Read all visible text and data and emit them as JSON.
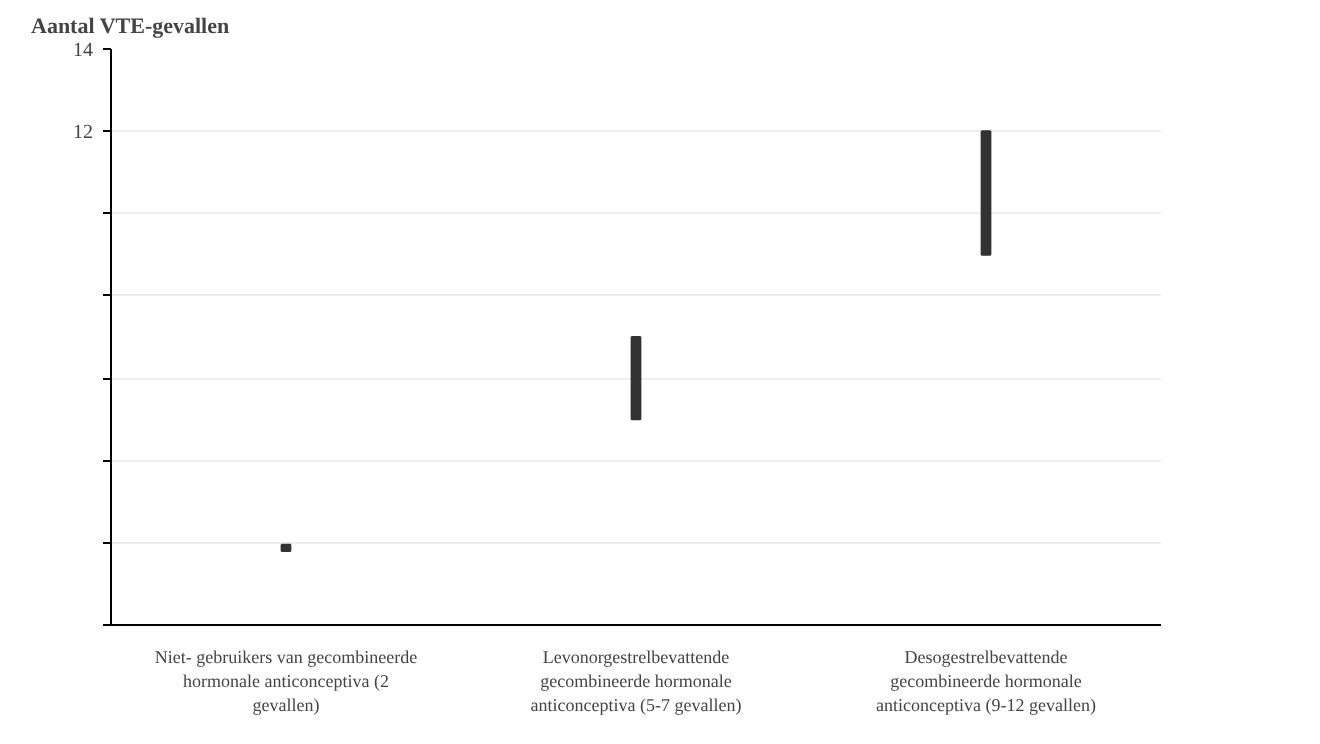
{
  "chart_data": {
    "type": "bar",
    "title": "Aantal VTE-gevallen",
    "categories": [
      "Niet- gebruikers van gecombineerde hormonale anticonceptiva (2 gevallen)",
      "Levonorgestrelbevattende gecombineerde hormonale anticonceptiva (5-7 gevallen)",
      "Desogestrelbevattende gecombineerde hormonale anticonceptiva (9-12 gevallen)"
    ],
    "base": [
      1.8,
      5,
      9
    ],
    "values": [
      0.15,
      2,
      3
    ],
    "color": "#333333",
    "ylim": [
      0,
      14
    ],
    "yticks": [
      {
        "value": 0,
        "label": null
      },
      {
        "value": 2,
        "label": null
      },
      {
        "value": 4,
        "label": null
      },
      {
        "value": 6,
        "label": null
      },
      {
        "value": 8,
        "label": null
      },
      {
        "value": 10,
        "label": null
      },
      12,
      14
    ],
    "grid": "y"
  }
}
